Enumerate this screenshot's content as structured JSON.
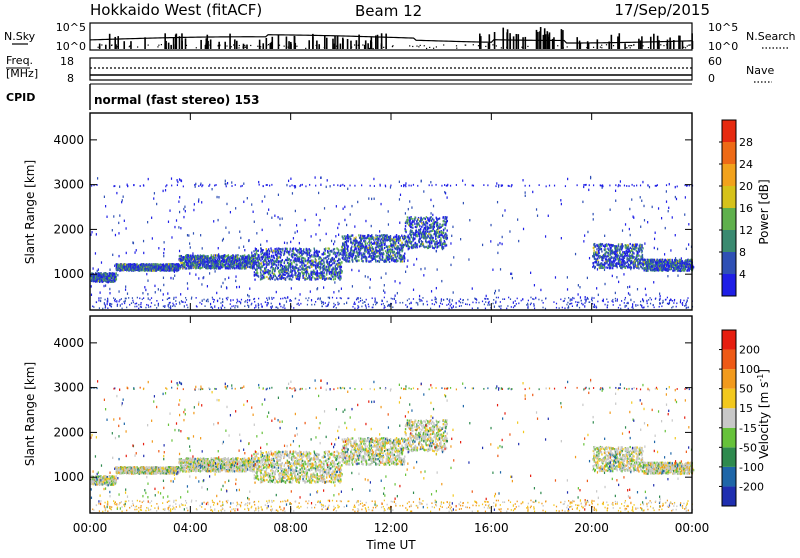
{
  "header": {
    "title": "Hokkaido West (fitACF)",
    "beam": "Beam 12",
    "date": "17/Sep/2015"
  },
  "top_panels": {
    "nsky_label": "N.Sky",
    "nsky_ticks": [
      "10^5",
      "10^0"
    ],
    "nsearch_label": "N.Search",
    "nsearch_ticks": [
      "10^5",
      "10^0"
    ],
    "freq_label": "Freq.",
    "freq_unit": "[MHz]",
    "freq_ticks": [
      "18",
      "8"
    ],
    "nave_label": "Nave",
    "nave_ticks": [
      "60",
      "0"
    ],
    "cpid_label": "CPID",
    "cpid_text": "normal (fast stereo) 153"
  },
  "chart_data": [
    {
      "type": "heatmap",
      "panel": "power",
      "ylabel": "Slant Range [km]",
      "xlabel": "",
      "yticks": [
        "1000",
        "2000",
        "3000",
        "4000"
      ],
      "ylim": [
        200,
        4600
      ],
      "colorbar_label": "Power [dB]",
      "colorbar_ticks": [
        "4",
        "8",
        "12",
        "16",
        "20",
        "24",
        "28"
      ],
      "colorbar_colors": [
        "#1f1fe6",
        "#2f50b5",
        "#3a8a70",
        "#5fb04c",
        "#d6c21a",
        "#f2a21c",
        "#ee6a16",
        "#e62a10"
      ],
      "colorbar_range": [
        0,
        32
      ],
      "scatter_bands": [
        {
          "t_start": 0.0,
          "t_end": 1.0,
          "range_lo": 850,
          "range_hi": 1050
        },
        {
          "t_start": 1.0,
          "t_end": 3.5,
          "range_lo": 1100,
          "range_hi": 1250
        },
        {
          "t_start": 3.5,
          "t_end": 6.5,
          "range_lo": 1150,
          "range_hi": 1450
        },
        {
          "t_start": 6.5,
          "t_end": 10.0,
          "range_lo": 900,
          "range_hi": 1600
        },
        {
          "t_start": 10.0,
          "t_end": 12.5,
          "range_lo": 1300,
          "range_hi": 1900
        },
        {
          "t_start": 12.5,
          "t_end": 14.2,
          "range_lo": 1600,
          "range_hi": 2300
        },
        {
          "t_start": 20.0,
          "t_end": 22.0,
          "range_lo": 1150,
          "range_hi": 1700
        },
        {
          "t_start": 22.0,
          "t_end": 24.0,
          "range_lo": 1100,
          "range_hi": 1350
        }
      ]
    },
    {
      "type": "heatmap",
      "panel": "velocity",
      "ylabel": "Slant Range [km]",
      "xlabel": "Time UT",
      "xticks": [
        "00:00",
        "04:00",
        "08:00",
        "12:00",
        "16:00",
        "20:00",
        "00:00"
      ],
      "xlim_hours": [
        0,
        24
      ],
      "yticks": [
        "1000",
        "2000",
        "3000",
        "4000"
      ],
      "ylim": [
        200,
        4600
      ],
      "colorbar_label": "Velocity [m s",
      "colorbar_label_sup": "-1",
      "colorbar_label_end": "]",
      "colorbar_ticks": [
        "200",
        "100",
        "50",
        "15",
        "-15",
        "-50",
        "-100",
        "-200"
      ],
      "colorbar_colors": [
        "#1f2fb0",
        "#1e66a8",
        "#2e8a4e",
        "#66c23a",
        "#c8c8c8",
        "#f2c81e",
        "#f29a1c",
        "#ee5a16",
        "#e61e10"
      ],
      "colorbar_range": [
        -250,
        250
      ]
    }
  ]
}
